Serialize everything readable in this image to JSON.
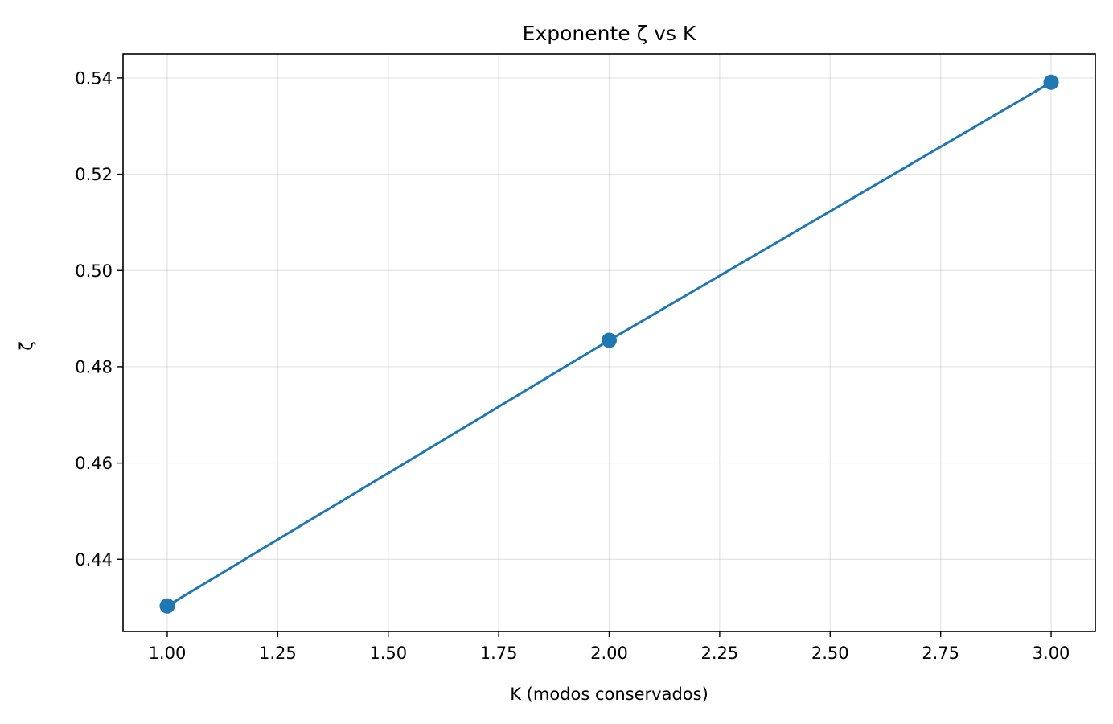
{
  "chart_data": {
    "type": "line",
    "title": "Exponente ζ vs K",
    "xlabel": "K (modos conservados)",
    "ylabel": "ζ",
    "xlim": [
      0.9,
      3.1
    ],
    "ylim": [
      0.425,
      0.545
    ],
    "grid": true,
    "x_ticks": [
      1.0,
      1.25,
      1.5,
      1.75,
      2.0,
      2.25,
      2.5,
      2.75,
      3.0
    ],
    "x_tick_labels": [
      "1.00",
      "1.25",
      "1.50",
      "1.75",
      "2.00",
      "2.25",
      "2.50",
      "2.75",
      "3.00"
    ],
    "y_ticks": [
      0.44,
      0.46,
      0.48,
      0.5,
      0.52,
      0.54
    ],
    "y_tick_labels": [
      "0.44",
      "0.46",
      "0.48",
      "0.50",
      "0.52",
      "0.54"
    ],
    "series": [
      {
        "x": [
          1,
          2,
          3
        ],
        "y": [
          0.4303,
          0.4855,
          0.5391
        ],
        "color": "#1f77b4",
        "marker": "circle"
      }
    ]
  }
}
